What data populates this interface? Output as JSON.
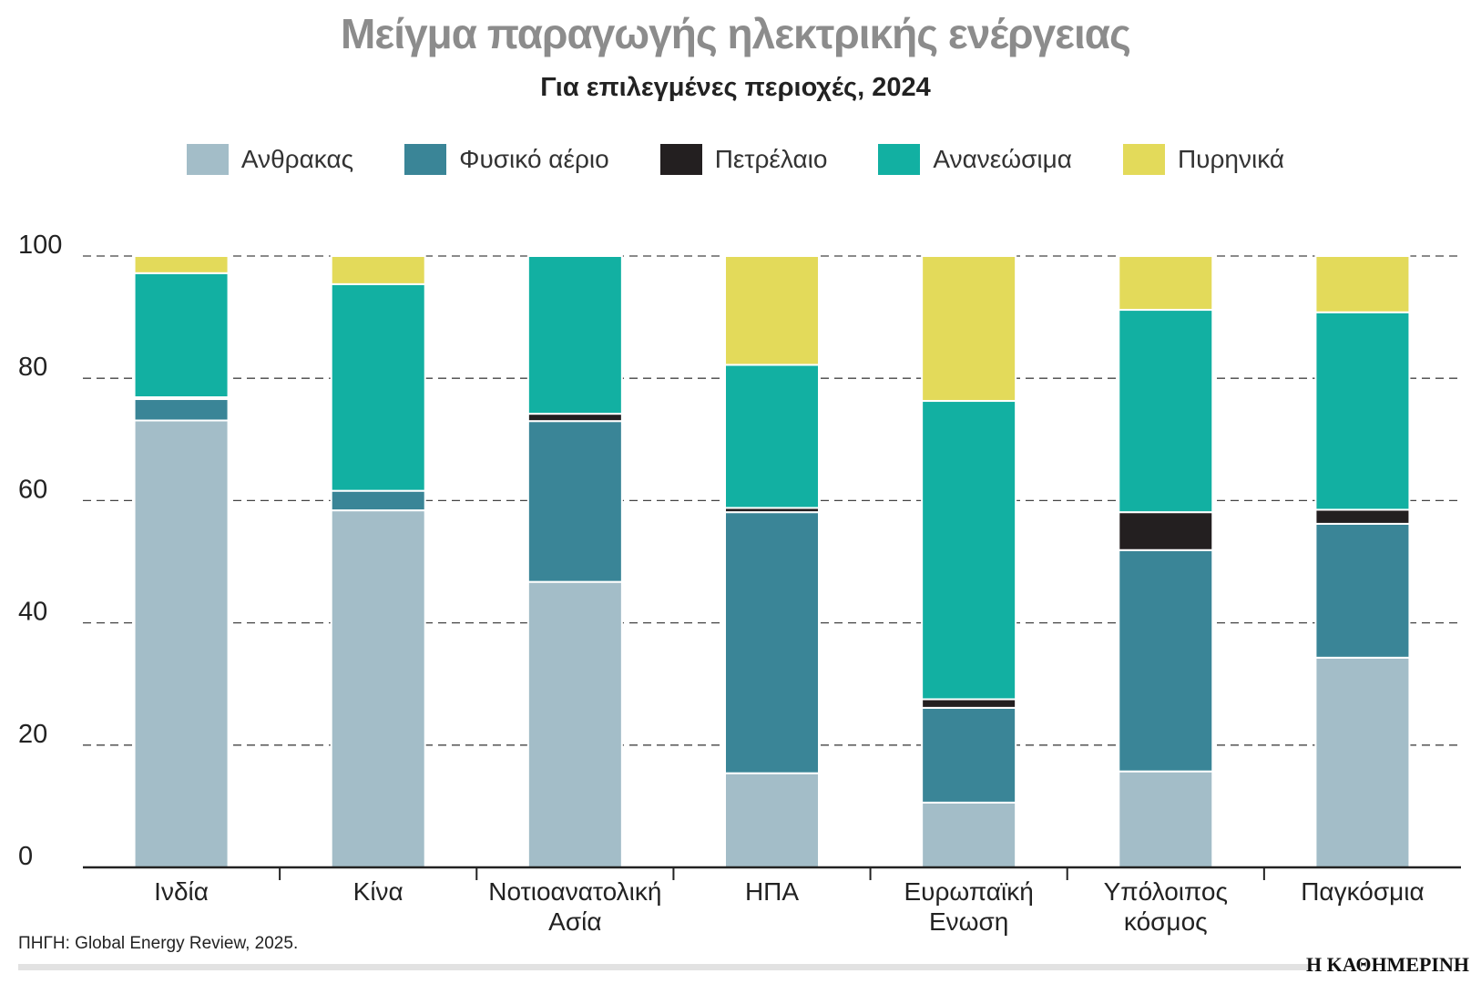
{
  "chart_data": {
    "type": "bar",
    "stacked": true,
    "title": "Μείγμα παραγωγής ηλεκτρικής ενέργειας",
    "subtitle": "Για επιλεγμένες περιοχές, 2024",
    "categories": [
      [
        "Ινδία"
      ],
      [
        "Κίνα"
      ],
      [
        "Νοτιοανατολική",
        "Ασία"
      ],
      [
        "ΗΠΑ"
      ],
      [
        "Ευρωπαϊκή",
        "Ενωση"
      ],
      [
        "Υπόλοιπος",
        "κόσμος"
      ],
      [
        "Παγκόσμια"
      ]
    ],
    "series": [
      {
        "name": "Ανθρακας",
        "color": "#a3bdc8",
        "values": [
          73.1,
          58.4,
          46.7,
          15.4,
          10.6,
          15.7,
          34.3
        ]
      },
      {
        "name": "Φυσικό αέριο",
        "color": "#3a8597",
        "values": [
          3.5,
          3.2,
          26.3,
          42.7,
          15.5,
          36.2,
          21.9
        ]
      },
      {
        "name": "Πετρέλαιο",
        "color": "#231f20",
        "values": [
          0.3,
          0.0,
          1.2,
          0.7,
          1.4,
          6.2,
          2.3
        ]
      },
      {
        "name": "Ανανεώσιμα",
        "color": "#12b0a2",
        "values": [
          20.3,
          33.8,
          25.8,
          23.4,
          48.8,
          33.1,
          32.3
        ]
      },
      {
        "name": "Πυρηνικά",
        "color": "#e3da5a",
        "values": [
          2.8,
          4.6,
          0.0,
          17.8,
          23.7,
          8.8,
          9.2
        ]
      }
    ],
    "yticks": [
      "0",
      "20",
      "40",
      "60",
      "80",
      "100"
    ],
    "ylim": [
      0,
      100
    ],
    "grid": true,
    "legend": "top-center"
  },
  "source": "ΠΗΓΗ: Global Energy Review, 2025.",
  "logo_text": "Η ΚΑΘΗΜΕΡΙΝΗ"
}
